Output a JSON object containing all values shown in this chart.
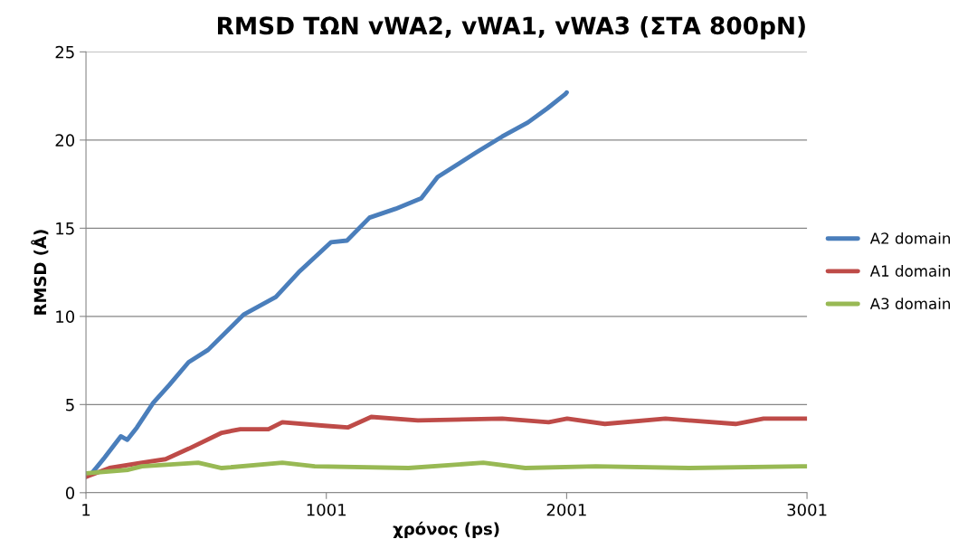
{
  "chart_data": {
    "type": "line",
    "title": "RMSD ΤΩΝ vWA2, vWA1, vWA3 (ΣΤΑ 800pN)",
    "xlabel": "χρόνος (ps)",
    "ylabel": "RMSD (Å)",
    "xlim": [
      1,
      3001
    ],
    "xticks": [
      1,
      1001,
      2001,
      3001
    ],
    "ylim": [
      0,
      25
    ],
    "yticks": [
      0,
      5,
      10,
      15,
      20,
      25
    ],
    "grid": "y",
    "legend": "right",
    "marker": "none",
    "line_style": "solid",
    "series": [
      {
        "name": "A2 domain",
        "color": "#4a7ebb",
        "x": [
          1,
          25,
          79,
          146,
          173,
          213,
          281,
          347,
          428,
          509,
          657,
          791,
          886,
          1020,
          1087,
          1181,
          1289,
          1396,
          1464,
          1625,
          1733,
          1840,
          1921,
          1995,
          2001
        ],
        "values": [
          0.9,
          1.1,
          2.0,
          3.2,
          3.0,
          3.7,
          5.1,
          6.1,
          7.4,
          8.1,
          10.1,
          11.1,
          12.5,
          14.2,
          14.3,
          15.6,
          16.1,
          16.7,
          17.9,
          19.3,
          20.2,
          21.0,
          21.8,
          22.6,
          22.7
        ]
      },
      {
        "name": "A1 domain",
        "color": "#be4b48",
        "x": [
          1,
          99,
          234,
          332,
          429,
          566,
          643,
          760,
          818,
          993,
          1090,
          1188,
          1382,
          1733,
          1926,
          2003,
          2160,
          2412,
          2704,
          2820,
          2977,
          3001
        ],
        "values": [
          0.9,
          1.4,
          1.7,
          1.9,
          2.5,
          3.4,
          3.6,
          3.6,
          4.0,
          3.8,
          3.7,
          4.3,
          4.1,
          4.2,
          4.0,
          4.2,
          3.9,
          4.2,
          3.9,
          4.2,
          4.2,
          4.2
        ]
      },
      {
        "name": "A3 domain",
        "color": "#98b954",
        "x": [
          1,
          177,
          234,
          468,
          566,
          818,
          953,
          1343,
          1654,
          1829,
          2122,
          2510,
          2977,
          3001
        ],
        "values": [
          1.1,
          1.3,
          1.5,
          1.7,
          1.4,
          1.7,
          1.5,
          1.4,
          1.7,
          1.4,
          1.5,
          1.4,
          1.5,
          1.5
        ]
      }
    ]
  }
}
